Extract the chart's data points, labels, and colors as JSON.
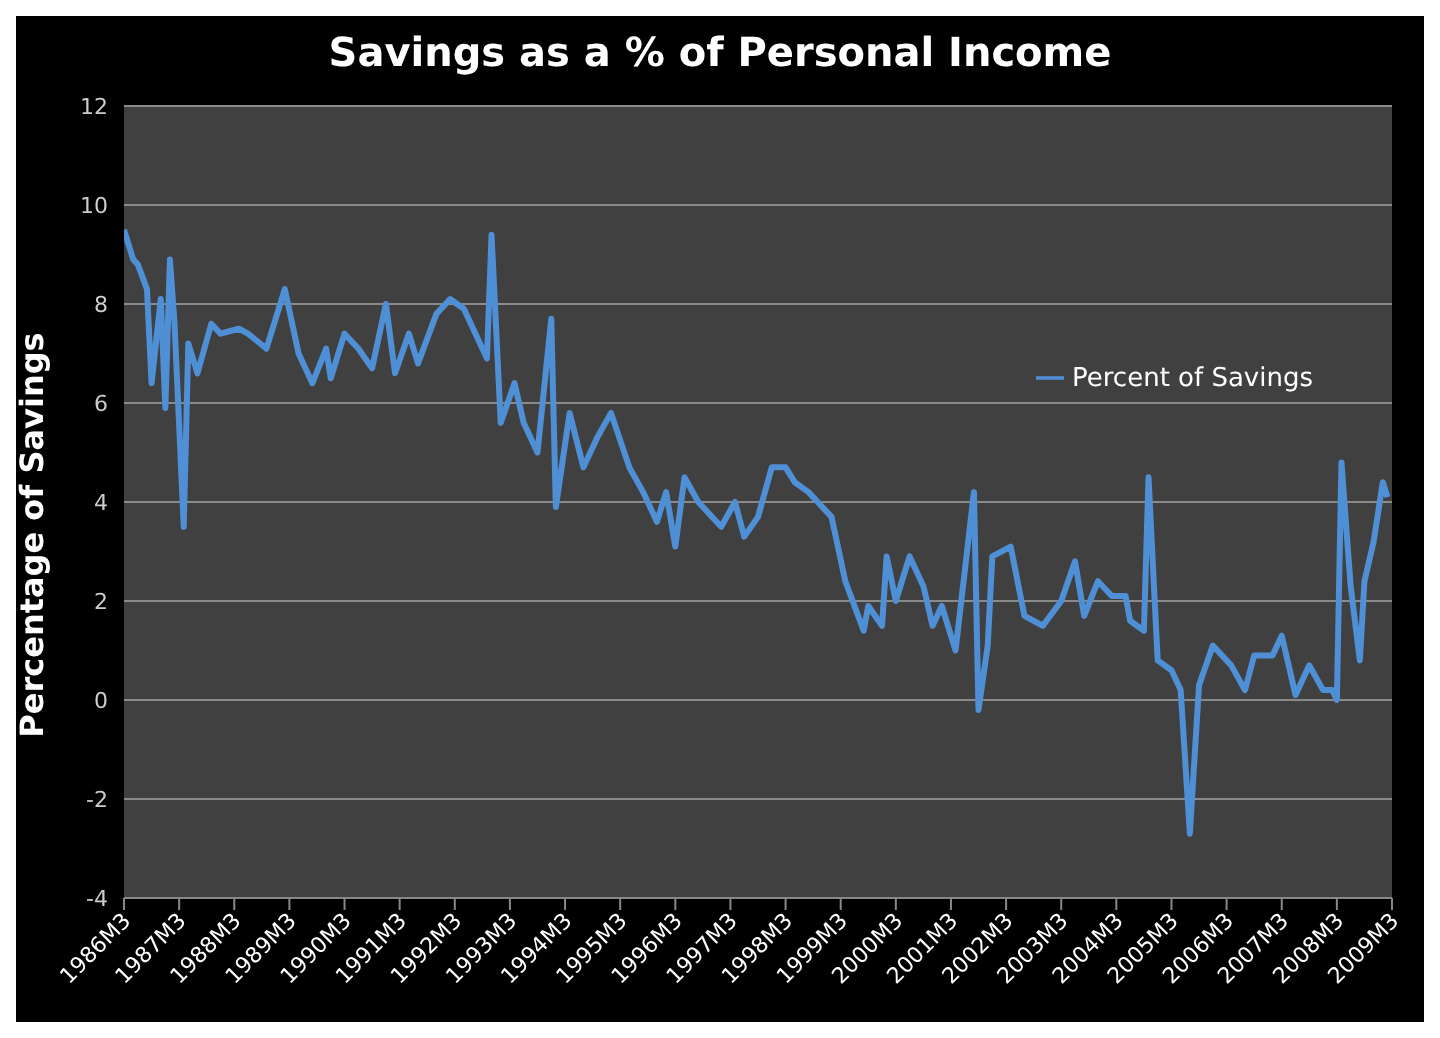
{
  "chart_data": {
    "type": "line",
    "title": "Savings as a % of Personal Income",
    "ylabel": "Percentage of Savings",
    "x": [
      "1986-03",
      "1986-05",
      "1986-06",
      "1986-08",
      "1986-09",
      "1986-11",
      "1986-12",
      "1987-01",
      "1987-02",
      "1987-04",
      "1987-05",
      "1987-07",
      "1987-10",
      "1987-12",
      "1988-04",
      "1988-06",
      "1988-10",
      "1989-02",
      "1989-05",
      "1989-08",
      "1989-11",
      "1989-12",
      "1990-03",
      "1990-06",
      "1990-09",
      "1990-12",
      "1991-02",
      "1991-05",
      "1991-07",
      "1991-11",
      "1992-02",
      "1992-05",
      "1992-09",
      "1992-10",
      "1992-11",
      "1993-01",
      "1993-04",
      "1993-06",
      "1993-09",
      "1993-12",
      "1994-01",
      "1994-04",
      "1994-07",
      "1994-10",
      "1995-01",
      "1995-05",
      "1995-08",
      "1995-11",
      "1996-01",
      "1996-03",
      "1996-05",
      "1996-08",
      "1997-01",
      "1997-04",
      "1997-06",
      "1997-09",
      "1997-12",
      "1998-03",
      "1998-05",
      "1998-08",
      "1998-11",
      "1999-01",
      "1999-04",
      "1999-08",
      "1999-09",
      "1999-12",
      "2000-01",
      "2000-03",
      "2000-06",
      "2000-09",
      "2000-11",
      "2001-01",
      "2001-04",
      "2001-08",
      "2001-09",
      "2001-11",
      "2001-12",
      "2002-04",
      "2002-07",
      "2002-11",
      "2003-03",
      "2003-06",
      "2003-08",
      "2003-11",
      "2004-02",
      "2004-05",
      "2004-06",
      "2004-09",
      "2004-10",
      "2004-12",
      "2005-03",
      "2005-05",
      "2005-07",
      "2005-09",
      "2005-12",
      "2006-04",
      "2006-07",
      "2006-09",
      "2007-01",
      "2007-03",
      "2007-06",
      "2007-09",
      "2007-12",
      "2008-02",
      "2008-03",
      "2008-04",
      "2008-06",
      "2008-08",
      "2008-09",
      "2008-11",
      "2009-01",
      "2009-02"
    ],
    "series": [
      {
        "name": "Percent of Savings",
        "color": "#4f8fd6",
        "values": [
          9.5,
          8.9,
          8.8,
          8.3,
          6.4,
          8.1,
          5.9,
          8.9,
          7.6,
          3.5,
          7.2,
          6.6,
          7.6,
          7.4,
          7.5,
          7.4,
          7.1,
          8.3,
          7.0,
          6.4,
          7.1,
          6.5,
          7.4,
          7.1,
          6.7,
          8.0,
          6.6,
          7.4,
          6.8,
          7.8,
          8.1,
          7.9,
          7.1,
          6.9,
          9.4,
          5.6,
          6.4,
          5.6,
          5.0,
          7.7,
          3.9,
          5.8,
          4.7,
          5.3,
          5.8,
          4.7,
          4.2,
          3.6,
          4.2,
          3.1,
          4.5,
          4.0,
          3.5,
          4.0,
          3.3,
          3.7,
          4.7,
          4.7,
          4.4,
          4.2,
          3.9,
          3.7,
          2.4,
          1.4,
          1.9,
          1.5,
          2.9,
          2.0,
          2.9,
          2.3,
          1.5,
          1.9,
          1.0,
          4.2,
          -0.2,
          1.1,
          2.9,
          3.1,
          1.7,
          1.5,
          2.0,
          2.8,
          1.7,
          2.4,
          2.1,
          2.1,
          1.6,
          1.4,
          4.5,
          0.8,
          0.6,
          0.2,
          -2.7,
          0.3,
          1.1,
          0.7,
          0.2,
          0.9,
          0.9,
          1.3,
          0.1,
          0.7,
          0.2,
          0.2,
          0.0,
          4.8,
          2.3,
          0.8,
          2.4,
          3.2,
          4.4,
          4.1
        ]
      }
    ],
    "xlim": [
      "1986-03",
      "2009-03"
    ],
    "xticks": [
      {
        "value": "1986-03",
        "label": "1986M3"
      },
      {
        "value": "1987-03",
        "label": "1987M3"
      },
      {
        "value": "1988-03",
        "label": "1988M3"
      },
      {
        "value": "1989-03",
        "label": "1989M3"
      },
      {
        "value": "1990-03",
        "label": "1990M3"
      },
      {
        "value": "1991-03",
        "label": "1991M3"
      },
      {
        "value": "1992-03",
        "label": "1992M3"
      },
      {
        "value": "1993-03",
        "label": "1993M3"
      },
      {
        "value": "1994-03",
        "label": "1994M3"
      },
      {
        "value": "1995-03",
        "label": "1995M3"
      },
      {
        "value": "1996-03",
        "label": "1996M3"
      },
      {
        "value": "1997-03",
        "label": "1997M3"
      },
      {
        "value": "1998-03",
        "label": "1998M3"
      },
      {
        "value": "1999-03",
        "label": "1999M3"
      },
      {
        "value": "2000-03",
        "label": "2000M3"
      },
      {
        "value": "2001-03",
        "label": "2001M3"
      },
      {
        "value": "2002-03",
        "label": "2002M3"
      },
      {
        "value": "2003-03",
        "label": "2003M3"
      },
      {
        "value": "2004-03",
        "label": "2004M3"
      },
      {
        "value": "2005-03",
        "label": "2005M3"
      },
      {
        "value": "2006-03",
        "label": "2006M3"
      },
      {
        "value": "2007-03",
        "label": "2007M3"
      },
      {
        "value": "2008-03",
        "label": "2008M3"
      },
      {
        "value": "2009-03",
        "label": "2009M3"
      }
    ],
    "ylim": [
      -4,
      12
    ],
    "yticks": [
      -4,
      -2,
      0,
      2,
      4,
      6,
      8,
      10,
      12
    ],
    "grid": "y",
    "legend": "top right",
    "marker": "none",
    "line_style": "solid"
  }
}
